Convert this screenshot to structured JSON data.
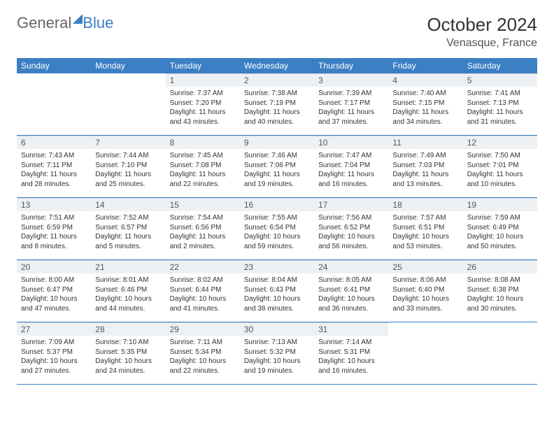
{
  "brand": {
    "general": "General",
    "blue": "Blue"
  },
  "title": "October 2024",
  "location": "Venasque, France",
  "colors": {
    "accent": "#3b7fc4",
    "header_bg": "#3b7fc4",
    "header_text": "#ffffff",
    "daynum_bg": "#eef1f4",
    "row_border": "#3b7fc4",
    "text": "#333333",
    "background": "#ffffff"
  },
  "weekdays": [
    "Sunday",
    "Monday",
    "Tuesday",
    "Wednesday",
    "Thursday",
    "Friday",
    "Saturday"
  ],
  "weeks": [
    [
      {
        "n": "",
        "sr": "",
        "ss": "",
        "dl": ""
      },
      {
        "n": "",
        "sr": "",
        "ss": "",
        "dl": ""
      },
      {
        "n": "1",
        "sr": "Sunrise: 7:37 AM",
        "ss": "Sunset: 7:20 PM",
        "dl": "Daylight: 11 hours and 43 minutes."
      },
      {
        "n": "2",
        "sr": "Sunrise: 7:38 AM",
        "ss": "Sunset: 7:19 PM",
        "dl": "Daylight: 11 hours and 40 minutes."
      },
      {
        "n": "3",
        "sr": "Sunrise: 7:39 AM",
        "ss": "Sunset: 7:17 PM",
        "dl": "Daylight: 11 hours and 37 minutes."
      },
      {
        "n": "4",
        "sr": "Sunrise: 7:40 AM",
        "ss": "Sunset: 7:15 PM",
        "dl": "Daylight: 11 hours and 34 minutes."
      },
      {
        "n": "5",
        "sr": "Sunrise: 7:41 AM",
        "ss": "Sunset: 7:13 PM",
        "dl": "Daylight: 11 hours and 31 minutes."
      }
    ],
    [
      {
        "n": "6",
        "sr": "Sunrise: 7:43 AM",
        "ss": "Sunset: 7:11 PM",
        "dl": "Daylight: 11 hours and 28 minutes."
      },
      {
        "n": "7",
        "sr": "Sunrise: 7:44 AM",
        "ss": "Sunset: 7:10 PM",
        "dl": "Daylight: 11 hours and 25 minutes."
      },
      {
        "n": "8",
        "sr": "Sunrise: 7:45 AM",
        "ss": "Sunset: 7:08 PM",
        "dl": "Daylight: 11 hours and 22 minutes."
      },
      {
        "n": "9",
        "sr": "Sunrise: 7:46 AM",
        "ss": "Sunset: 7:06 PM",
        "dl": "Daylight: 11 hours and 19 minutes."
      },
      {
        "n": "10",
        "sr": "Sunrise: 7:47 AM",
        "ss": "Sunset: 7:04 PM",
        "dl": "Daylight: 11 hours and 16 minutes."
      },
      {
        "n": "11",
        "sr": "Sunrise: 7:49 AM",
        "ss": "Sunset: 7:03 PM",
        "dl": "Daylight: 11 hours and 13 minutes."
      },
      {
        "n": "12",
        "sr": "Sunrise: 7:50 AM",
        "ss": "Sunset: 7:01 PM",
        "dl": "Daylight: 11 hours and 10 minutes."
      }
    ],
    [
      {
        "n": "13",
        "sr": "Sunrise: 7:51 AM",
        "ss": "Sunset: 6:59 PM",
        "dl": "Daylight: 11 hours and 8 minutes."
      },
      {
        "n": "14",
        "sr": "Sunrise: 7:52 AM",
        "ss": "Sunset: 6:57 PM",
        "dl": "Daylight: 11 hours and 5 minutes."
      },
      {
        "n": "15",
        "sr": "Sunrise: 7:54 AM",
        "ss": "Sunset: 6:56 PM",
        "dl": "Daylight: 11 hours and 2 minutes."
      },
      {
        "n": "16",
        "sr": "Sunrise: 7:55 AM",
        "ss": "Sunset: 6:54 PM",
        "dl": "Daylight: 10 hours and 59 minutes."
      },
      {
        "n": "17",
        "sr": "Sunrise: 7:56 AM",
        "ss": "Sunset: 6:52 PM",
        "dl": "Daylight: 10 hours and 56 minutes."
      },
      {
        "n": "18",
        "sr": "Sunrise: 7:57 AM",
        "ss": "Sunset: 6:51 PM",
        "dl": "Daylight: 10 hours and 53 minutes."
      },
      {
        "n": "19",
        "sr": "Sunrise: 7:59 AM",
        "ss": "Sunset: 6:49 PM",
        "dl": "Daylight: 10 hours and 50 minutes."
      }
    ],
    [
      {
        "n": "20",
        "sr": "Sunrise: 8:00 AM",
        "ss": "Sunset: 6:47 PM",
        "dl": "Daylight: 10 hours and 47 minutes."
      },
      {
        "n": "21",
        "sr": "Sunrise: 8:01 AM",
        "ss": "Sunset: 6:46 PM",
        "dl": "Daylight: 10 hours and 44 minutes."
      },
      {
        "n": "22",
        "sr": "Sunrise: 8:02 AM",
        "ss": "Sunset: 6:44 PM",
        "dl": "Daylight: 10 hours and 41 minutes."
      },
      {
        "n": "23",
        "sr": "Sunrise: 8:04 AM",
        "ss": "Sunset: 6:43 PM",
        "dl": "Daylight: 10 hours and 38 minutes."
      },
      {
        "n": "24",
        "sr": "Sunrise: 8:05 AM",
        "ss": "Sunset: 6:41 PM",
        "dl": "Daylight: 10 hours and 36 minutes."
      },
      {
        "n": "25",
        "sr": "Sunrise: 8:06 AM",
        "ss": "Sunset: 6:40 PM",
        "dl": "Daylight: 10 hours and 33 minutes."
      },
      {
        "n": "26",
        "sr": "Sunrise: 8:08 AM",
        "ss": "Sunset: 6:38 PM",
        "dl": "Daylight: 10 hours and 30 minutes."
      }
    ],
    [
      {
        "n": "27",
        "sr": "Sunrise: 7:09 AM",
        "ss": "Sunset: 5:37 PM",
        "dl": "Daylight: 10 hours and 27 minutes."
      },
      {
        "n": "28",
        "sr": "Sunrise: 7:10 AM",
        "ss": "Sunset: 5:35 PM",
        "dl": "Daylight: 10 hours and 24 minutes."
      },
      {
        "n": "29",
        "sr": "Sunrise: 7:11 AM",
        "ss": "Sunset: 5:34 PM",
        "dl": "Daylight: 10 hours and 22 minutes."
      },
      {
        "n": "30",
        "sr": "Sunrise: 7:13 AM",
        "ss": "Sunset: 5:32 PM",
        "dl": "Daylight: 10 hours and 19 minutes."
      },
      {
        "n": "31",
        "sr": "Sunrise: 7:14 AM",
        "ss": "Sunset: 5:31 PM",
        "dl": "Daylight: 10 hours and 16 minutes."
      },
      {
        "n": "",
        "sr": "",
        "ss": "",
        "dl": ""
      },
      {
        "n": "",
        "sr": "",
        "ss": "",
        "dl": ""
      }
    ]
  ]
}
